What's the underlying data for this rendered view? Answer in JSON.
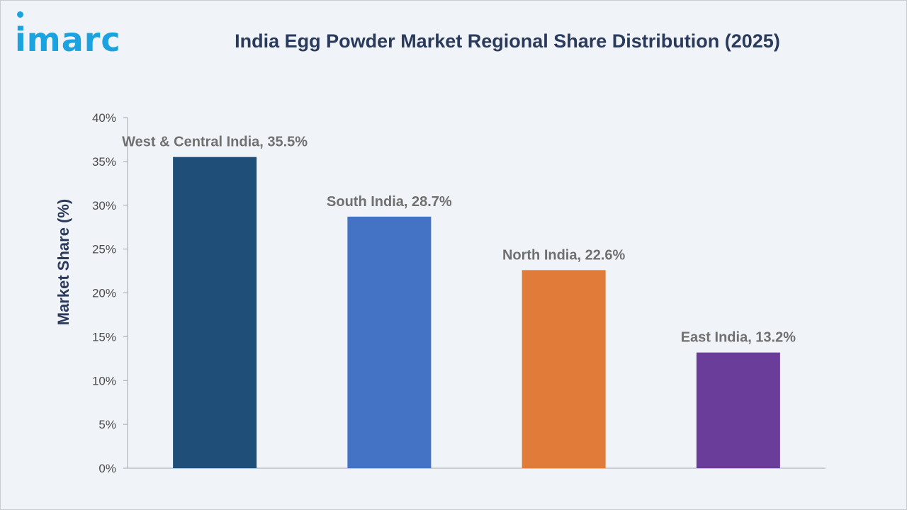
{
  "brand": {
    "logo_text": "imarc"
  },
  "chart_data": {
    "type": "bar",
    "title": "India Egg Powder Market Regional Share Distribution (2025)",
    "ylabel": "Market Share (%)",
    "xlabel": "",
    "ylim": [
      0,
      40
    ],
    "yticks": [
      "0%",
      "5%",
      "10%",
      "15%",
      "20%",
      "25%",
      "30%",
      "35%",
      "40%"
    ],
    "ytick_values": [
      0,
      5,
      10,
      15,
      20,
      25,
      30,
      35,
      40
    ],
    "categories": [
      "West & Central India",
      "South India",
      "North India",
      "East India"
    ],
    "values": [
      35.5,
      28.7,
      22.6,
      13.2
    ],
    "data_labels": [
      "West & Central India, 35.5%",
      "South India, 28.7%",
      "North India, 22.6%",
      "East India, 13.2%"
    ],
    "colors": [
      "#1f4e79",
      "#4472c4",
      "#e07b39",
      "#6a3d9a"
    ],
    "grid": false,
    "legend": "none"
  }
}
